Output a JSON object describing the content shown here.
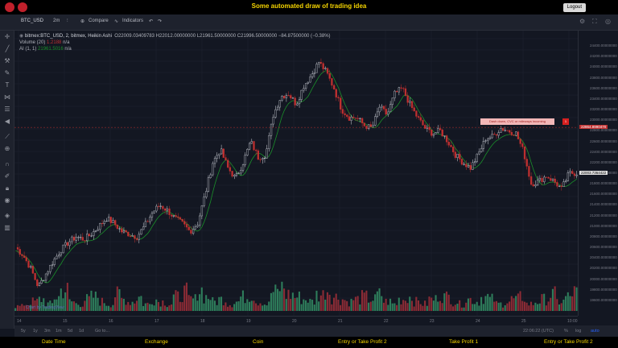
{
  "app": {
    "title": "Some automated draw of trading idea",
    "logout": "Logout"
  },
  "toolbar": {
    "symbol": "BTC_USD",
    "interval": "2m",
    "compare": "Compare",
    "indicators": "Indicators"
  },
  "legend": {
    "main_symbol": "bitmex:BTC_USD, 2, bitmex, Heikin Ashi",
    "ohlc": "O22009.03409783 H22012.00000000 L21961.50000000 C21996.50000000 −84.87500000 (−0.38%)",
    "volume": {
      "label": "Volume (20)",
      "value1": "1.2188",
      "value2": "n/a"
    },
    "ai": {
      "label": "AI (1, 1)",
      "value1": "21961.5016",
      "value2": "n/a"
    }
  },
  "price_axis": {
    "labels": [
      "24400.00000000",
      "24200.00000000",
      "24000.00000000",
      "23800.00000000",
      "23600.00000000",
      "23400.00000000",
      "23200.00000000",
      "23000.00000000",
      "22800.00000000",
      "22600.00000000",
      "22400.00000000",
      "22200.00000000",
      "22000.00000000",
      "21800.00000000",
      "21600.00000000",
      "21400.00000000",
      "21200.00000000",
      "21000.00000000",
      "20800.00000000",
      "20600.00000000",
      "20400.00000000",
      "20200.00000000",
      "20000.00000000",
      "19800.00000000",
      "19600.00000000"
    ],
    "current_price": "22003.7364422",
    "alert_price": "22864.8990470"
  },
  "alert": {
    "text": "Dash down, CVC or mileways incoming",
    "badge": "1"
  },
  "time_axis": {
    "labels": [
      "14",
      "15",
      "16",
      "17",
      "18",
      "19",
      "20",
      "21",
      "22",
      "23",
      "24",
      "25",
      "10:00"
    ]
  },
  "bottom": {
    "ranges": [
      "5y",
      "1y",
      "3m",
      "1m",
      "5d",
      "1d",
      "Go to..."
    ],
    "clock": "22:06:22 (UTC)",
    "percent": "%",
    "log": "log",
    "auto": "auto"
  },
  "watermark": "Chart by TradingView",
  "footer": {
    "columns": [
      "Date Time",
      "Exchange",
      "Coin",
      "Entry or Take Profit 2",
      "Take Profit 1",
      "Entry or Take Profit 2"
    ]
  },
  "colors": {
    "up": "#d1d4dc",
    "down": "#c03030",
    "ma": "#1a8f2a",
    "vol_up": "#2e7d5b",
    "vol_down": "#8b2b35",
    "title": "#f5d400"
  },
  "icons": [
    "crosshair-icon",
    "trendline-icon",
    "fib-icon",
    "brush-icon",
    "text-icon",
    "pattern-icon",
    "forecast-icon",
    "arrow-icon",
    "ruler-icon",
    "zoom-icon",
    "magnet-icon",
    "lock-icon",
    "eye-icon",
    "trash-icon"
  ],
  "chart_data": {
    "type": "candlestick",
    "title": "",
    "xlabel": "",
    "ylabel": "",
    "ylim": [
      19400,
      24600
    ],
    "x_ticks": [
      "14",
      "15",
      "16",
      "17",
      "18",
      "19",
      "20",
      "21",
      "22",
      "23",
      "24",
      "25",
      "10:00"
    ],
    "close_path": [
      20600,
      20450,
      20200,
      19850,
      20100,
      20350,
      20550,
      20700,
      20800,
      20750,
      20850,
      21000,
      21150,
      21050,
      20900,
      20850,
      20800,
      21000,
      21250,
      21400,
      21300,
      21150,
      21050,
      20900,
      21050,
      21600,
      22200,
      22450,
      22100,
      21900,
      22200,
      22600,
      22300,
      22350,
      23100,
      23450,
      23500,
      23300,
      23650,
      23850,
      24100,
      23900,
      23600,
      23200,
      23050,
      23050,
      22900,
      22850,
      23250,
      23100,
      23500,
      23600,
      23300,
      23050,
      22850,
      22750,
      22800,
      22600,
      22350,
      22200,
      22100,
      22350,
      22650,
      22700,
      22850,
      22800,
      22750,
      22400,
      21800,
      21850,
      21950,
      21850,
      21700,
      22000,
      22003
    ],
    "volume_relative": [
      0.2,
      0.3,
      0.4,
      0.5,
      0.3,
      0.6,
      0.9,
      0.4,
      0.3,
      0.5,
      0.6,
      0.4,
      0.3,
      0.7,
      0.5,
      0.4,
      0.6,
      0.3,
      0.5,
      0.4,
      0.3,
      0.6,
      0.8,
      0.5,
      0.9,
      0.6,
      0.4,
      0.5,
      0.3,
      0.4,
      0.6,
      0.7,
      0.4,
      0.3,
      0.8,
      1.0,
      0.7,
      0.6,
      0.5,
      0.4,
      0.7,
      0.9,
      0.6,
      0.5,
      0.4,
      0.5,
      0.6,
      0.5,
      0.7,
      0.4,
      0.3,
      0.5,
      0.6,
      0.4,
      0.3,
      0.5,
      0.7,
      0.6,
      0.4,
      0.3,
      0.5,
      0.4,
      0.6,
      0.5,
      0.3,
      0.4,
      0.5,
      0.6,
      0.3,
      0.4,
      0.5,
      0.7,
      0.4,
      0.6,
      0.8
    ]
  }
}
